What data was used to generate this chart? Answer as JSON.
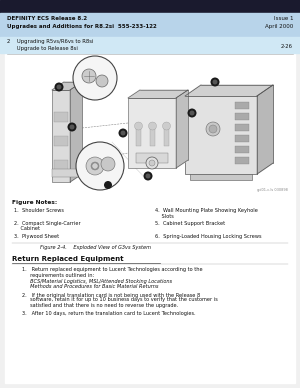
{
  "bg_color": "#f0f0f0",
  "page_bg": "#ffffff",
  "header_bg": "#b8d4ea",
  "header_line1_left": "DEFINITY ECS Release 8.2",
  "header_line2_left": "Upgrades and Additions for R8.2si  555-233-122",
  "header_line1_right": "Issue 1",
  "header_line2_right": "April 2000",
  "subheader_line1_left": "2    Upgrading R5vs/R6vs to R8si",
  "subheader_line2_left": "      Upgrade to Release 8si",
  "subheader_right": "2-26",
  "figure_notes_title": "Figure Notes:",
  "figure_notes_col1": [
    "1.  Shoulder Screws",
    "2.  Compact Single-Carrier\n    Cabinet",
    "3.  Plywood Sheet"
  ],
  "figure_notes_col2": [
    "4.  Wall Mounting Plate Showing Keyhole\n    Slots",
    "5.  Cabinet Support Bracket",
    "6.  Spring-Loaded Housing Locking Screws"
  ],
  "figure_caption": "Figure 2-4.    Exploded View of G3vs System",
  "section_title": "Return Replaced Equipment",
  "body_line1a": "1.   Return replaced equipment to Lucent Technologies according to the",
  "body_line1b": "     requirements outlined in:",
  "body_line1c": "     BCS/Material Logistics, MSL/Attended Stocking Locations",
  "body_line1d": "     Methods and Procedures for Basic Material Returns",
  "body_line2a": "2.   If the original translation card is not being used with the Release 8",
  "body_line2b": "     software, retain it for up to 10 business days to verify that the customer is",
  "body_line2c": "     satisfied and that there is no need to reverse the upgrade.",
  "body_line3": "3.   After 10 days, return the translation card to Lucent Technologies.",
  "text_color": "#111111",
  "header_text_color": "#111111",
  "diagram_label": "gd01-c.ls 030898"
}
